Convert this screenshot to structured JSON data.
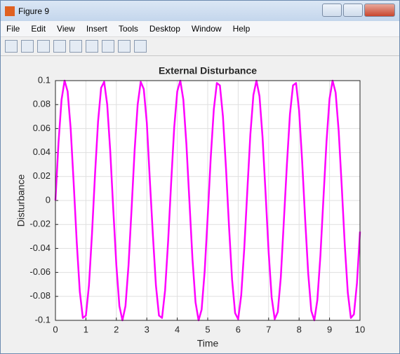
{
  "window": {
    "title": "Figure 9",
    "menu": [
      "File",
      "Edit",
      "View",
      "Insert",
      "Tools",
      "Desktop",
      "Window",
      "Help"
    ]
  },
  "chart_data": {
    "type": "line",
    "title": "External Disturbance",
    "x_label": "Time",
    "y_label": "Disturbance",
    "x": [
      0,
      0.1,
      0.2,
      0.3,
      0.4,
      0.5,
      0.6,
      0.7,
      0.8,
      0.9,
      1,
      1.1,
      1.2,
      1.3,
      1.4,
      1.5,
      1.6,
      1.7,
      1.8,
      1.9,
      2,
      2.1,
      2.2,
      2.3,
      2.4,
      2.5,
      2.6,
      2.7,
      2.8,
      2.9,
      3,
      3.1,
      3.2,
      3.3,
      3.4,
      3.5,
      3.6,
      3.7,
      3.8,
      3.9,
      4,
      4.1,
      4.2,
      4.3,
      4.4,
      4.5,
      4.6,
      4.7,
      4.8,
      4.9,
      5,
      5.1,
      5.2,
      5.3,
      5.4,
      5.5,
      5.6,
      5.7,
      5.8,
      5.9,
      6,
      6.1,
      6.2,
      6.3,
      6.4,
      6.5,
      6.6,
      6.7,
      6.8,
      6.9,
      7,
      7.1,
      7.2,
      7.3,
      7.4,
      7.5,
      7.6,
      7.7,
      7.8,
      7.9,
      8,
      8.1,
      8.2,
      8.3,
      8.4,
      8.5,
      8.6,
      8.7,
      8.8,
      8.9,
      9,
      9.1,
      9.2,
      9.3,
      9.4,
      9.5,
      9.6,
      9.7,
      9.8,
      9.9,
      10
    ],
    "values": [
      0,
      0.048,
      0.084,
      0.1,
      0.091,
      0.06,
      0.014,
      -0.035,
      -0.076,
      -0.098,
      -0.096,
      -0.071,
      -0.028,
      0.022,
      0.066,
      0.094,
      0.099,
      0.08,
      0.041,
      -0.008,
      -0.054,
      -0.088,
      -0.1,
      -0.088,
      -0.054,
      -0.007,
      0.042,
      0.08,
      0.099,
      0.093,
      0.065,
      0.017,
      -0.029,
      -0.071,
      -0.096,
      -0.098,
      -0.075,
      -0.034,
      0.015,
      0.061,
      0.091,
      0.1,
      0.084,
      0.047,
      -0.001,
      -0.049,
      -0.085,
      -0.1,
      -0.091,
      -0.059,
      -0.013,
      0.036,
      0.076,
      0.098,
      0.096,
      0.07,
      0.027,
      -0.022,
      -0.066,
      -0.094,
      -0.099,
      -0.079,
      -0.04,
      0.008,
      0.055,
      0.088,
      0.1,
      0.087,
      0.053,
      0.006,
      -0.043,
      -0.081,
      -0.099,
      -0.093,
      -0.064,
      -0.017,
      0.03,
      0.072,
      0.096,
      0.098,
      0.075,
      0.033,
      -0.016,
      -0.061,
      -0.092,
      -0.1,
      -0.083,
      -0.046,
      0.002,
      0.049,
      0.085,
      0.1,
      0.09,
      0.058,
      0.012,
      -0.037,
      -0.077,
      -0.098,
      -0.095,
      -0.069,
      -0.026
    ],
    "color": "#ff00ff",
    "xlim": [
      0,
      10
    ],
    "xticks": [
      0,
      1,
      2,
      3,
      4,
      5,
      6,
      7,
      8,
      9,
      10
    ],
    "ylim": [
      -0.1,
      0.1
    ],
    "yticks": [
      -0.1,
      -0.08,
      -0.06,
      -0.04,
      -0.02,
      0,
      0.02,
      0.04,
      0.06,
      0.08,
      0.1
    ],
    "grid": true
  }
}
